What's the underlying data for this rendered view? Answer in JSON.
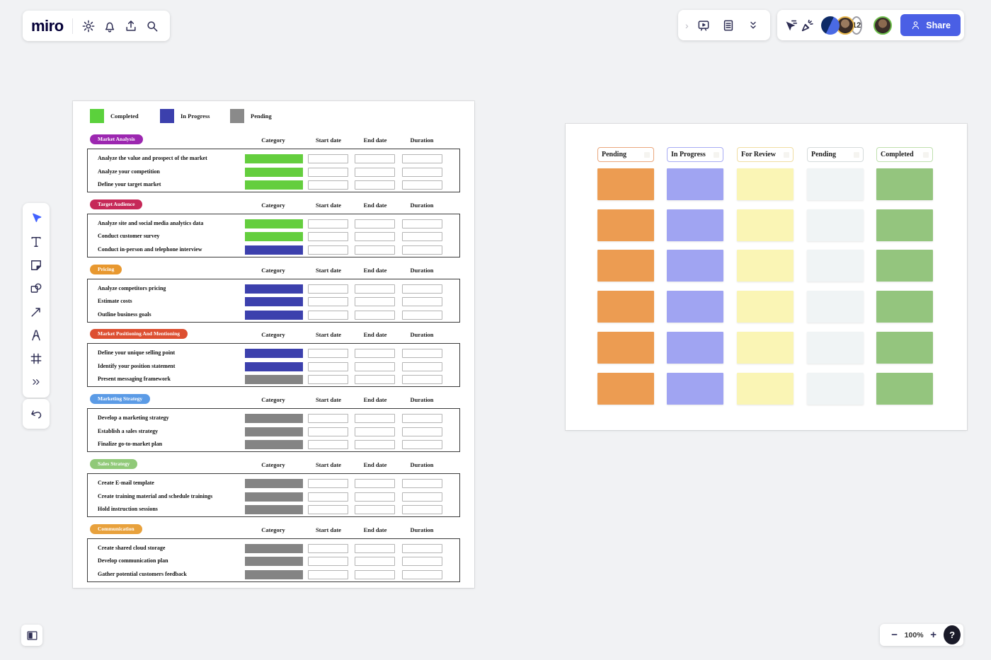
{
  "app": {
    "logo": "miro",
    "share_label": "Share",
    "collaborator_count": "12",
    "zoom_level": "100%",
    "zoom_out_label": "−",
    "zoom_in_label": "+",
    "help_label": "?",
    "accent_color": "#4a5fe5"
  },
  "legend": [
    {
      "label": "Completed",
      "color": "#5bd13c"
    },
    {
      "label": "In Progress",
      "color": "#3c40ad"
    },
    {
      "label": "Pending",
      "color": "#8a8a8a"
    }
  ],
  "timeline": {
    "columns": [
      "Category",
      "Start date",
      "End date",
      "Duration"
    ],
    "status_colors": {
      "completed": "#64ce3e",
      "in_progress": "#3c40ad",
      "pending": "#848484"
    },
    "sections": [
      {
        "title": "Market Analysis",
        "badge_color": "#9c27b0",
        "tasks": [
          {
            "label": "Analyze the value and prospect of the market",
            "status": "completed"
          },
          {
            "label": "Analyze your competition",
            "status": "completed"
          },
          {
            "label": "Define your target market",
            "status": "completed"
          }
        ]
      },
      {
        "title": "Target Audience",
        "badge_color": "#c62958",
        "tasks": [
          {
            "label": "Analyze site and social media analytics data",
            "status": "completed"
          },
          {
            "label": "Conduct customer survey",
            "status": "completed"
          },
          {
            "label": "Conduct in-person and telephone interview",
            "status": "in_progress"
          }
        ]
      },
      {
        "title": "Pricing",
        "badge_color": "#e8982f",
        "tasks": [
          {
            "label": "Analyze competitors pricing",
            "status": "in_progress"
          },
          {
            "label": "Estimate costs",
            "status": "in_progress"
          },
          {
            "label": "Outline business goals",
            "status": "in_progress"
          }
        ]
      },
      {
        "title": "Market Positioning And Mentioning",
        "badge_color": "#dd4f31",
        "tasks": [
          {
            "label": "Define your unique selling point",
            "status": "in_progress"
          },
          {
            "label": "Identify your position statement",
            "status": "in_progress"
          },
          {
            "label": "Present messaging framework",
            "status": "pending"
          }
        ]
      },
      {
        "title": "Marketing Strategy",
        "badge_color": "#5b9be6",
        "tasks": [
          {
            "label": "Develop a marketing strategy",
            "status": "pending"
          },
          {
            "label": "Establish a sales strategy",
            "status": "pending"
          },
          {
            "label": "Finalize go-to-market plan",
            "status": "pending"
          }
        ]
      },
      {
        "title": "Sales Strategy",
        "badge_color": "#90c978",
        "tasks": [
          {
            "label": "Create E-mail template",
            "status": "pending"
          },
          {
            "label": "Create training material and schedule trainings",
            "status": "pending"
          },
          {
            "label": "Hold instruction sessions",
            "status": "pending"
          }
        ]
      },
      {
        "title": "Communication",
        "badge_color": "#e8a13c",
        "tasks": [
          {
            "label": "Create shared cloud storage",
            "status": "pending"
          },
          {
            "label": "Develop communication plan",
            "status": "pending"
          },
          {
            "label": "Gather potential customers feedback",
            "status": "pending"
          }
        ]
      }
    ]
  },
  "kanban": {
    "columns": [
      {
        "title": "Pending",
        "border_color": "#eaa87e",
        "card_color": "#ec9c52",
        "card_count": 6
      },
      {
        "title": "In Progress",
        "border_color": "#a8acf4",
        "card_color": "#a0a4f2",
        "card_count": 6
      },
      {
        "title": "For Review",
        "border_color": "#f0ddA2",
        "card_color": "#faf5b5",
        "card_count": 6
      },
      {
        "title": "Pending",
        "border_color": "#d5dbdb",
        "card_color": "#f0f4f5",
        "card_count": 6
      },
      {
        "title": "Completed",
        "border_color": "#bfe0ae",
        "card_color": "#94c57e",
        "card_count": 6
      }
    ]
  }
}
